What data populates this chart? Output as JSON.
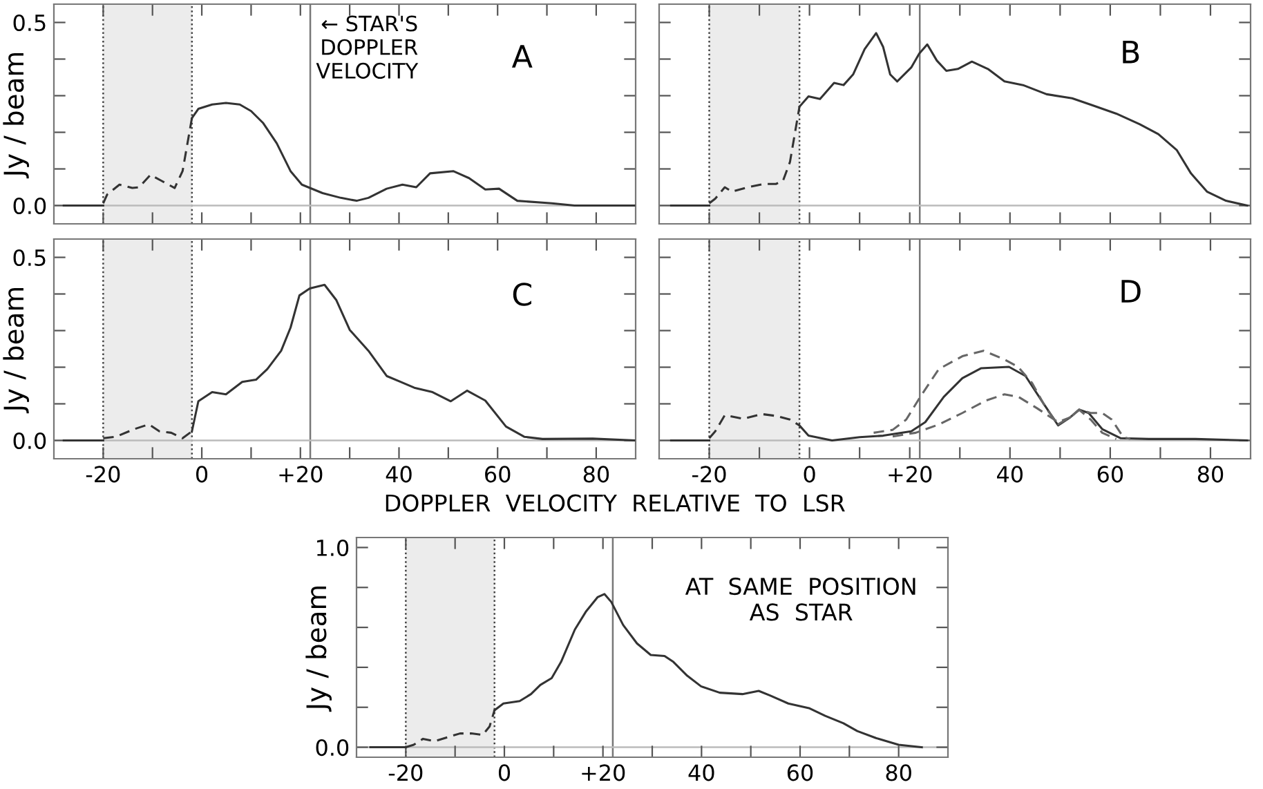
{
  "chart_data": [
    {
      "type": "line",
      "title": "A",
      "ylabel": "Jy / beam",
      "tick_labels": "y",
      "xlim": [
        -30,
        88
      ],
      "ylim": [
        -0.05,
        0.55
      ],
      "xticks": [
        {
          "value": -20,
          "label": null
        },
        {
          "value": -10,
          "label": null
        },
        {
          "value": 0,
          "label": null
        },
        {
          "value": 10,
          "label": null
        },
        {
          "value": 20,
          "label": null
        },
        {
          "value": 30,
          "label": null
        },
        {
          "value": 40,
          "label": null
        },
        {
          "value": 50,
          "label": null
        },
        {
          "value": 60,
          "label": null
        },
        {
          "value": 70,
          "label": null
        },
        {
          "value": 80,
          "label": null
        }
      ],
      "yticks": [
        {
          "value": 0,
          "label": "0.0"
        },
        {
          "value": 0.1,
          "label": null
        },
        {
          "value": 0.2,
          "label": null
        },
        {
          "value": 0.3,
          "label": null
        },
        {
          "value": 0.4,
          "label": null
        },
        {
          "value": 0.5,
          "label": "0.5"
        }
      ],
      "bands": [
        {
          "axis": "x",
          "from": -20,
          "to": -2,
          "color": "#ececec"
        }
      ],
      "ref_lines": [
        {
          "axis": "x",
          "value": -20,
          "color": "#444444",
          "line_style": "dotted"
        },
        {
          "axis": "x",
          "value": -2,
          "color": "#444444",
          "line_style": "dotted"
        },
        {
          "axis": "x",
          "value": 22,
          "color": "#777777",
          "line_style": "solid"
        },
        {
          "axis": "y",
          "value": 0,
          "color": "#bbbbbb",
          "line_style": "solid"
        }
      ],
      "annotations": [
        {
          "text": "← STAR'S\nDOPPLER\nVELOCITY",
          "x": 22,
          "y": 0.52
        }
      ],
      "series": [
        {
          "color": "#333333",
          "line_style": "solid",
          "x": [
            -28,
            -20
          ],
          "values": [
            0,
            0
          ]
        },
        {
          "color": "#333333",
          "line_style": "dashed",
          "x": [
            -20,
            -19.2,
            -16.7,
            -14.1,
            -12.7,
            -10.4,
            -8.1,
            -5.5,
            -3.9,
            -2
          ],
          "values": [
            0.006,
            0.03,
            0.057,
            0.048,
            0.05,
            0.084,
            0.067,
            0.048,
            0.094,
            0.239
          ]
        },
        {
          "color": "#333333",
          "line_style": "solid",
          "x": [
            -2,
            -0.7,
            2.1,
            4.9,
            7.7,
            10,
            12.4,
            15.2,
            18,
            20.3,
            24.5,
            28.2,
            31.4,
            33.8,
            37.5,
            40.7,
            43.5,
            46.3,
            51,
            54.2,
            57.5,
            60.3,
            64,
            71,
            75.6,
            87.7
          ],
          "values": [
            0.239,
            0.264,
            0.276,
            0.28,
            0.276,
            0.258,
            0.226,
            0.17,
            0.094,
            0.057,
            0.034,
            0.021,
            0.013,
            0.021,
            0.046,
            0.057,
            0.05,
            0.088,
            0.094,
            0.075,
            0.044,
            0.046,
            0.013,
            0.006,
            0,
            0
          ]
        }
      ]
    },
    {
      "type": "line",
      "title": "B",
      "tick_labels": false,
      "xlim": [
        -30,
        88
      ],
      "ylim": [
        -0.05,
        0.55
      ],
      "xticks": [
        {
          "value": -20,
          "label": null
        },
        {
          "value": -10,
          "label": null
        },
        {
          "value": 0,
          "label": null
        },
        {
          "value": 10,
          "label": null
        },
        {
          "value": 20,
          "label": null
        },
        {
          "value": 30,
          "label": null
        },
        {
          "value": 40,
          "label": null
        },
        {
          "value": 50,
          "label": null
        },
        {
          "value": 60,
          "label": null
        },
        {
          "value": 70,
          "label": null
        },
        {
          "value": 80,
          "label": null
        }
      ],
      "yticks": [
        {
          "value": 0,
          "label": null
        },
        {
          "value": 0.1,
          "label": null
        },
        {
          "value": 0.2,
          "label": null
        },
        {
          "value": 0.3,
          "label": null
        },
        {
          "value": 0.4,
          "label": null
        },
        {
          "value": 0.5,
          "label": null
        }
      ],
      "bands": [
        {
          "axis": "x",
          "from": -20,
          "to": -2,
          "color": "#ececec"
        }
      ],
      "ref_lines": [
        {
          "axis": "x",
          "value": -20,
          "color": "#444444",
          "line_style": "dotted"
        },
        {
          "axis": "x",
          "value": -2,
          "color": "#444444",
          "line_style": "dotted"
        },
        {
          "axis": "x",
          "value": 22,
          "color": "#777777",
          "line_style": "solid"
        },
        {
          "axis": "y",
          "value": 0,
          "color": "#bbbbbb",
          "line_style": "solid"
        }
      ],
      "series": [
        {
          "color": "#333333",
          "line_style": "solid",
          "x": [
            -27.6,
            -20
          ],
          "values": [
            0,
            0
          ]
        },
        {
          "color": "#333333",
          "line_style": "dashed",
          "x": [
            -20,
            -18.8,
            -16.9,
            -15.5,
            -12.3,
            -9,
            -6.7,
            -5.3,
            -3.9,
            -2
          ],
          "values": [
            0.006,
            0.019,
            0.05,
            0.038,
            0.05,
            0.059,
            0.059,
            0.067,
            0.119,
            0.27
          ]
        },
        {
          "color": "#333333",
          "line_style": "solid",
          "x": [
            -2,
            -0.2,
            2.1,
            4.9,
            6.8,
            8.7,
            11,
            13.3,
            14.7,
            16.1,
            17.5,
            20.3,
            21.9,
            23.5,
            25.4,
            27.3,
            29.6,
            32.4,
            35.6,
            38.9,
            42.6,
            47.3,
            52.4,
            56.6,
            61.2,
            65.9,
            69.6,
            73.3,
            76.1,
            79.3,
            83.1,
            87.3
          ],
          "values": [
            0.27,
            0.298,
            0.291,
            0.335,
            0.329,
            0.358,
            0.427,
            0.471,
            0.433,
            0.358,
            0.339,
            0.377,
            0.415,
            0.44,
            0.396,
            0.368,
            0.373,
            0.393,
            0.373,
            0.339,
            0.329,
            0.304,
            0.293,
            0.273,
            0.251,
            0.222,
            0.195,
            0.151,
            0.088,
            0.038,
            0.013,
            0
          ]
        }
      ]
    },
    {
      "type": "line",
      "title": "C",
      "ylabel": "Jy / beam",
      "xlabel": "DOPPLER  VELOCITY  RELATIVE  TO  LSR",
      "xlim": [
        -30,
        88
      ],
      "ylim": [
        -0.05,
        0.55
      ],
      "xticks": [
        {
          "value": -20,
          "label": "-20"
        },
        {
          "value": -10,
          "label": null
        },
        0,
        {
          "value": 10,
          "label": null
        },
        {
          "value": 20,
          "label": "+20"
        },
        {
          "value": 30,
          "label": null
        },
        40,
        {
          "value": 50,
          "label": null
        },
        60,
        {
          "value": 70,
          "label": null
        },
        80
      ],
      "yticks": [
        {
          "value": 0,
          "label": "0.0"
        },
        {
          "value": 0.1,
          "label": null
        },
        {
          "value": 0.2,
          "label": null
        },
        {
          "value": 0.3,
          "label": null
        },
        {
          "value": 0.4,
          "label": null
        },
        {
          "value": 0.5,
          "label": "0.5"
        }
      ],
      "bands": [
        {
          "axis": "x",
          "from": -20,
          "to": -2,
          "color": "#ececec"
        }
      ],
      "ref_lines": [
        {
          "axis": "x",
          "value": -20,
          "color": "#444444",
          "line_style": "dotted"
        },
        {
          "axis": "x",
          "value": -2,
          "color": "#444444",
          "line_style": "dotted"
        },
        {
          "axis": "x",
          "value": 22,
          "color": "#777777",
          "line_style": "solid"
        },
        {
          "axis": "y",
          "value": 0,
          "color": "#bbbbbb",
          "line_style": "solid"
        }
      ],
      "series": [
        {
          "color": "#333333",
          "line_style": "solid",
          "x": [
            -28,
            -20
          ],
          "values": [
            0,
            0
          ]
        },
        {
          "color": "#333333",
          "line_style": "dashed",
          "x": [
            -20,
            -17.4,
            -13.7,
            -10.7,
            -8.6,
            -6.2,
            -3.9,
            -2
          ],
          "values": [
            0.006,
            0.01,
            0.031,
            0.044,
            0.025,
            0.021,
            0.006,
            0.025
          ]
        },
        {
          "color": "#333333",
          "line_style": "solid",
          "x": [
            -2,
            -0.7,
            2.1,
            4.9,
            8.2,
            11,
            13.3,
            16.1,
            18,
            19.8,
            21.9,
            24.9,
            27.3,
            30,
            33.8,
            37.5,
            40.3,
            43.1,
            46.8,
            50.5,
            53.8,
            57.5,
            61.7,
            65.4,
            69.1,
            79.3,
            87.7
          ],
          "values": [
            0.025,
            0.107,
            0.132,
            0.126,
            0.16,
            0.166,
            0.195,
            0.245,
            0.308,
            0.396,
            0.415,
            0.425,
            0.383,
            0.302,
            0.245,
            0.176,
            0.16,
            0.144,
            0.132,
            0.107,
            0.136,
            0.109,
            0.038,
            0.01,
            0.004,
            0.005,
            0
          ]
        }
      ]
    },
    {
      "type": "line",
      "title": "D",
      "tick_labels": "x",
      "xlim": [
        -30,
        88
      ],
      "ylim": [
        -0.05,
        0.55
      ],
      "xticks": [
        {
          "value": -20,
          "label": "-20"
        },
        {
          "value": -10,
          "label": null
        },
        0,
        {
          "value": 10,
          "label": null
        },
        {
          "value": 20,
          "label": "+20"
        },
        {
          "value": 30,
          "label": null
        },
        40,
        {
          "value": 50,
          "label": null
        },
        60,
        {
          "value": 70,
          "label": null
        },
        80
      ],
      "yticks": [
        {
          "value": 0,
          "label": null
        },
        {
          "value": 0.1,
          "label": null
        },
        {
          "value": 0.2,
          "label": null
        },
        {
          "value": 0.3,
          "label": null
        },
        {
          "value": 0.4,
          "label": null
        },
        {
          "value": 0.5,
          "label": null
        }
      ],
      "bands": [
        {
          "axis": "x",
          "from": -20,
          "to": -2,
          "color": "#ececec"
        }
      ],
      "ref_lines": [
        {
          "axis": "x",
          "value": -20,
          "color": "#444444",
          "line_style": "dotted"
        },
        {
          "axis": "x",
          "value": -2,
          "color": "#444444",
          "line_style": "dotted"
        },
        {
          "axis": "x",
          "value": 22,
          "color": "#777777",
          "line_style": "solid"
        },
        {
          "axis": "y",
          "value": 0,
          "color": "#bbbbbb",
          "line_style": "solid"
        }
      ],
      "series": [
        {
          "color": "#333333",
          "line_style": "solid",
          "x": [
            -27.6,
            -20
          ],
          "values": [
            0,
            0
          ]
        },
        {
          "color": "#333333",
          "line_style": "dashed",
          "x": [
            -20,
            -18.8,
            -16.9,
            -13.2,
            -9.5,
            -6.7,
            -3.9,
            -2
          ],
          "values": [
            0.006,
            0.025,
            0.069,
            0.059,
            0.072,
            0.067,
            0.057,
            0.041
          ]
        },
        {
          "color": "#333333",
          "line_style": "solid",
          "x": [
            -2,
            -0.2,
            4.5,
            10,
            14.7,
            20.3,
            23.1,
            26.8,
            30.5,
            34.2,
            39.8,
            43.1,
            46.4,
            49.6,
            52,
            53.8,
            55.7,
            58.4,
            62.1,
            67.7,
            77,
            87.3
          ],
          "values": [
            0.041,
            0.013,
            0,
            0.009,
            0.013,
            0.025,
            0.05,
            0.119,
            0.17,
            0.197,
            0.201,
            0.176,
            0.107,
            0.041,
            0.063,
            0.084,
            0.075,
            0.031,
            0.006,
            0.004,
            0.004,
            0
          ]
        },
        {
          "color": "#666666",
          "line_style": "dashed",
          "x": [
            12.8,
            16.6,
            19.3,
            22.1,
            25.8,
            30.5,
            34.7,
            38.8,
            41.6,
            44.4,
            47.2,
            49.6,
            52,
            53.8,
            56.1,
            58.4,
            60.3,
            62.6,
            64
          ],
          "values": [
            0.021,
            0.029,
            0.057,
            0.119,
            0.195,
            0.23,
            0.245,
            0.222,
            0.201,
            0.157,
            0.088,
            0.044,
            0.063,
            0.084,
            0.075,
            0.075,
            0.057,
            0.009,
            0.004
          ]
        },
        {
          "color": "#666666",
          "line_style": "dashed",
          "x": [
            16.6,
            21.2,
            25.9,
            30.5,
            35.2,
            38.9,
            41.7,
            45.4,
            49.6,
            52,
            53.8,
            56.1,
            58.4,
            61.2
          ],
          "values": [
            0.011,
            0.021,
            0.044,
            0.075,
            0.109,
            0.126,
            0.119,
            0.088,
            0.05,
            0.063,
            0.084,
            0.057,
            0.021,
            0.004
          ]
        }
      ]
    },
    {
      "type": "line",
      "title": "AT  SAME  POSITION\nAS  STAR",
      "ylabel": "Jy / beam",
      "xlim": [
        -30,
        90
      ],
      "ylim": [
        -0.05,
        1.05
      ],
      "xticks": [
        {
          "value": -20,
          "label": "-20"
        },
        {
          "value": -10,
          "label": null
        },
        0,
        {
          "value": 10,
          "label": null
        },
        {
          "value": 20,
          "label": "+20"
        },
        {
          "value": 30,
          "label": null
        },
        40,
        {
          "value": 50,
          "label": null
        },
        60,
        {
          "value": 70,
          "label": null
        },
        80
      ],
      "yticks": [
        {
          "value": 0,
          "label": "0.0"
        },
        {
          "value": 0.2,
          "label": null
        },
        {
          "value": 0.4,
          "label": null
        },
        {
          "value": 0.6,
          "label": null
        },
        {
          "value": 0.8,
          "label": null
        },
        {
          "value": 1,
          "label": "1.0"
        }
      ],
      "bands": [
        {
          "axis": "x",
          "from": -20,
          "to": -2,
          "color": "#ececec"
        }
      ],
      "ref_lines": [
        {
          "axis": "x",
          "value": -20,
          "color": "#444444",
          "line_style": "dotted"
        },
        {
          "axis": "x",
          "value": -2,
          "color": "#444444",
          "line_style": "dotted"
        },
        {
          "axis": "x",
          "value": 22,
          "color": "#777777",
          "line_style": "solid"
        },
        {
          "axis": "y",
          "value": 0,
          "color": "#bbbbbb",
          "line_style": "solid"
        }
      ],
      "series": [
        {
          "color": "#333333",
          "line_style": "solid",
          "x": [
            -27.2,
            -20
          ],
          "values": [
            0,
            0
          ]
        },
        {
          "color": "#333333",
          "line_style": "dashed",
          "x": [
            -20,
            -18.4,
            -16.5,
            -14.2,
            -11.4,
            -9,
            -6.7,
            -4.4,
            -3,
            -2
          ],
          "values": [
            0,
            0.012,
            0.042,
            0.03,
            0.051,
            0.069,
            0.069,
            0.062,
            0.104,
            0.185
          ]
        },
        {
          "color": "#333333",
          "line_style": "solid",
          "x": [
            -2,
            -0.2,
            3.1,
            5.4,
            7.3,
            9.6,
            11.5,
            14.3,
            16.6,
            18.9,
            20.3,
            21.7,
            24.1,
            26.9,
            29.7,
            32.5,
            34.3,
            37.1,
            39.9,
            43.7,
            48.3,
            51.6,
            53.9,
            57.6,
            61.8,
            65.1,
            68.8,
            71.6,
            75.4,
            80,
            84.7
          ],
          "values": [
            0.185,
            0.219,
            0.231,
            0.266,
            0.312,
            0.346,
            0.427,
            0.589,
            0.681,
            0.751,
            0.767,
            0.727,
            0.612,
            0.52,
            0.462,
            0.457,
            0.427,
            0.358,
            0.305,
            0.273,
            0.266,
            0.282,
            0.259,
            0.219,
            0.196,
            0.157,
            0.12,
            0.081,
            0.046,
            0.012,
            0
          ]
        }
      ]
    }
  ]
}
